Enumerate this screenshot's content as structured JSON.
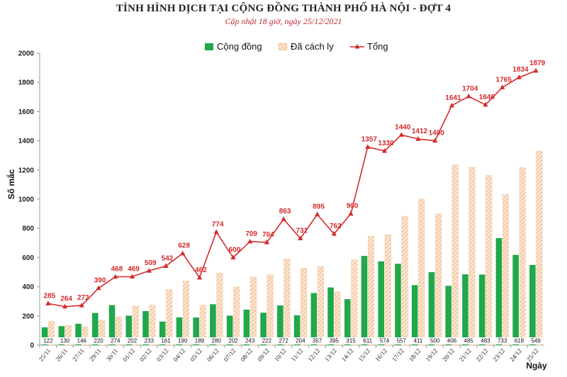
{
  "chart_data": {
    "type": "bar",
    "title": "TÌNH HÌNH DỊCH TẠI CỘNG ĐỒNG THÀNH PHỐ HÀ NỘI - ĐỢT 4",
    "subtitle": "Cập nhật 18 giờ, ngày 25/12/2021",
    "xlabel": "Ngày",
    "ylabel": "Số mắc",
    "ylim": [
      0,
      2000
    ],
    "yticks": [
      0,
      200,
      400,
      600,
      800,
      1000,
      1200,
      1400,
      1600,
      1800,
      2000
    ],
    "legend_position": "top-center",
    "grid": false,
    "categories": [
      "25/11",
      "26/11",
      "27/11",
      "29/11",
      "30/11",
      "01/12",
      "02/12",
      "03/12",
      "04/12",
      "05/12",
      "06/12",
      "07/12",
      "08/12",
      "09/12",
      "10/12",
      "11/12",
      "12/12",
      "13/12",
      "14/12",
      "15/12",
      "16/12",
      "17/12",
      "18/12",
      "19/12",
      "20/12",
      "21/12",
      "22/12",
      "23/12",
      "24/12",
      "25/12"
    ],
    "series": [
      {
        "name": "Cộng đồng",
        "kind": "bar",
        "color": "#20a84a",
        "values": [
          122,
          130,
          146,
          220,
          274,
          202,
          233,
          161,
          190,
          189,
          280,
          202,
          243,
          222,
          272,
          204,
          357,
          395,
          315,
          611,
          574,
          557,
          411,
          500,
          406,
          485,
          483,
          733,
          618,
          549
        ]
      },
      {
        "name": "Đã cách ly",
        "kind": "bar",
        "color": "#f3c9a3",
        "values": [
          163,
          134,
          126,
          170,
          194,
          267,
          276,
          381,
          438,
          273,
          494,
          398,
          466,
          482,
          591,
          527,
          538,
          367,
          585,
          746,
          756,
          883,
          1001,
          900,
          1235,
          1219,
          1163,
          1032,
          1216,
          1330
        ]
      },
      {
        "name": "Tổng",
        "kind": "line",
        "color": "#d42a2a",
        "values": [
          285,
          264,
          272,
          390,
          468,
          469,
          509,
          542,
          628,
          462,
          774,
          600,
          709,
          704,
          863,
          731,
          895,
          762,
          900,
          1357,
          1330,
          1440,
          1412,
          1400,
          1641,
          1704,
          1646,
          1765,
          1834,
          1879
        ]
      }
    ]
  }
}
